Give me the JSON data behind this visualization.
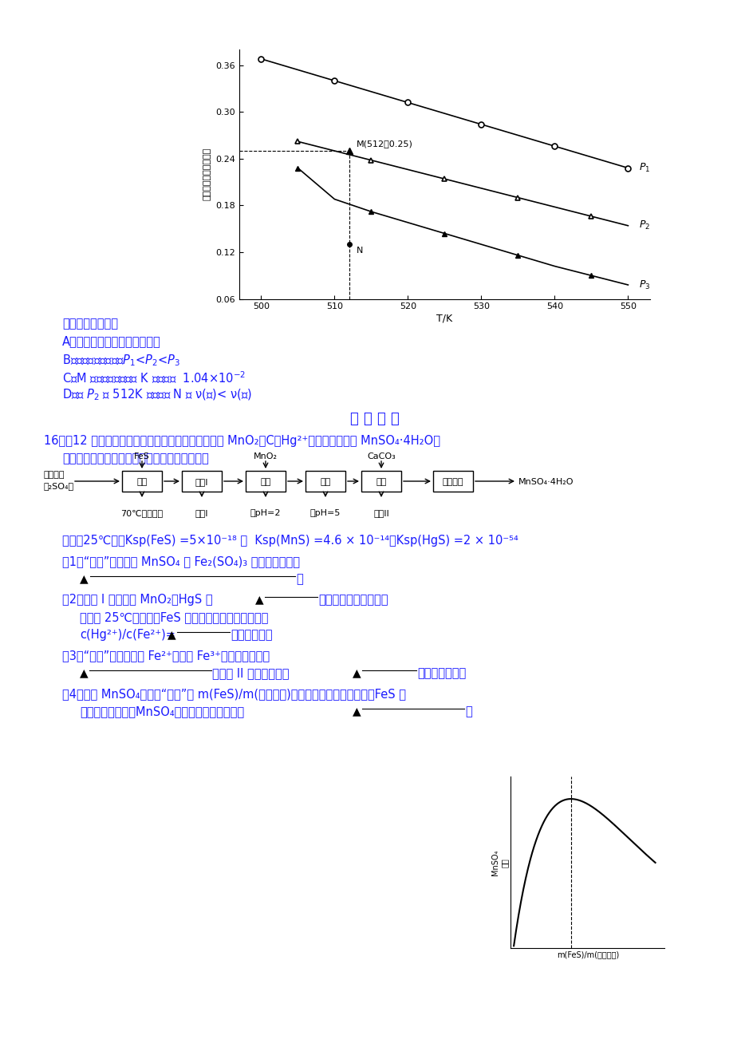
{
  "background": "#ffffff",
  "graph": {
    "ylabel": "平衡时甲醇的物质的量",
    "xlabel": "T/K",
    "ylim": [
      0.06,
      0.38
    ],
    "xlim": [
      497,
      553
    ],
    "yticks": [
      0.06,
      0.12,
      0.18,
      0.24,
      0.3,
      0.36
    ],
    "xticks": [
      500,
      510,
      520,
      530,
      540,
      550
    ],
    "P1_x": [
      500,
      505,
      510,
      515,
      520,
      525,
      530,
      535,
      540,
      545,
      550
    ],
    "P1_y": [
      0.368,
      0.354,
      0.34,
      0.326,
      0.312,
      0.298,
      0.284,
      0.27,
      0.256,
      0.242,
      0.228
    ],
    "P2_x": [
      505,
      510,
      515,
      520,
      525,
      530,
      535,
      540,
      545,
      550
    ],
    "P2_y": [
      0.262,
      0.25,
      0.238,
      0.226,
      0.214,
      0.202,
      0.19,
      0.178,
      0.166,
      0.154
    ],
    "P3_x": [
      505,
      510,
      515,
      520,
      525,
      530,
      535,
      540,
      545,
      550
    ],
    "P3_y": [
      0.228,
      0.188,
      0.172,
      0.158,
      0.144,
      0.13,
      0.116,
      0.102,
      0.09,
      0.078
    ],
    "M_point": [
      512,
      0.25
    ],
    "N_point": [
      512,
      0.13
    ],
    "M_label": "M(512，0.25)",
    "N_label": "N"
  },
  "text_color": "#1a1aff",
  "black": "#000000"
}
